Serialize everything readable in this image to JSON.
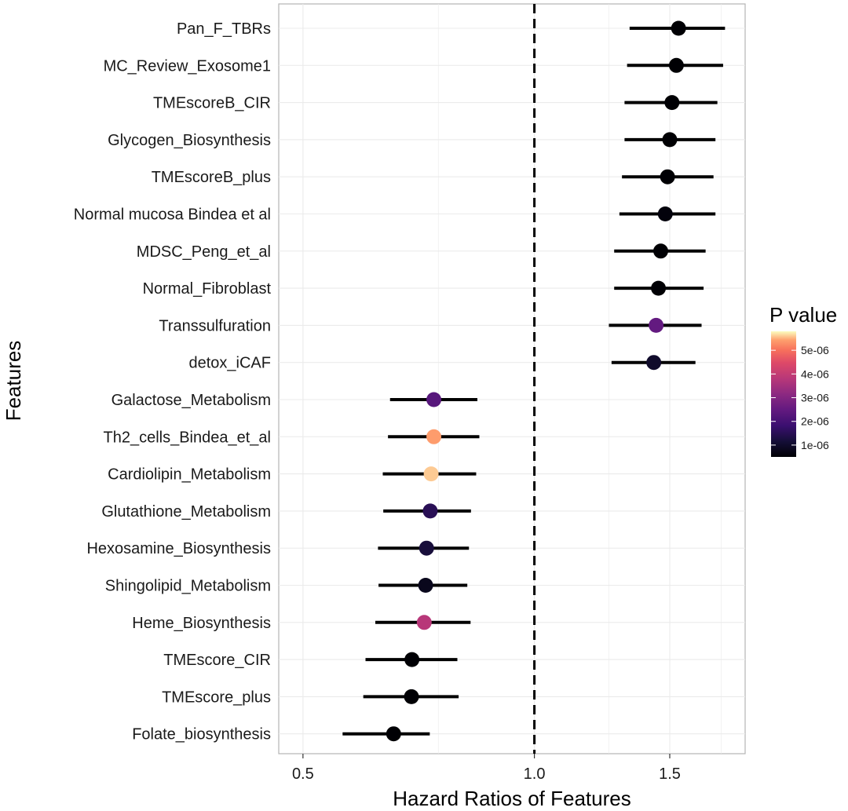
{
  "chart_data": {
    "type": "scatter",
    "subtype": "forest-plot",
    "xlabel": "Hazard Ratios of Features",
    "ylabel": "Features",
    "xscale": "log",
    "xlim": [
      0.465,
      1.88
    ],
    "xticks": [
      0.5,
      1.0,
      1.5
    ],
    "xtick_labels": [
      "0.5",
      "1.0",
      "1.5"
    ],
    "reference_line": 1.0,
    "grid": true,
    "legend": {
      "title": "P value",
      "placement": "right",
      "min": 5e-07,
      "max": 5.8e-06,
      "ticks": [
        1e-06,
        2e-06,
        3e-06,
        4e-06,
        5e-06
      ],
      "tick_labels": [
        "1e-06",
        "2e-06",
        "3e-06",
        "4e-06",
        "5e-06"
      ]
    },
    "features": [
      {
        "name": "Pan_F_TBRs",
        "hr": 1.54,
        "lower": 1.33,
        "upper": 1.77,
        "p": 5e-07
      },
      {
        "name": "MC_Review_Exosome1",
        "hr": 1.53,
        "lower": 1.32,
        "upper": 1.76,
        "p": 5e-07
      },
      {
        "name": "TMEscoreB_CIR",
        "hr": 1.51,
        "lower": 1.31,
        "upper": 1.73,
        "p": 5e-07
      },
      {
        "name": "Glycogen_Biosynthesis",
        "hr": 1.5,
        "lower": 1.31,
        "upper": 1.72,
        "p": 5e-07
      },
      {
        "name": "TMEscoreB_plus",
        "hr": 1.49,
        "lower": 1.3,
        "upper": 1.71,
        "p": 5e-07
      },
      {
        "name": "Normal mucosa Bindea et al",
        "hr": 1.48,
        "lower": 1.29,
        "upper": 1.72,
        "p": 6e-07
      },
      {
        "name": "MDSC_Peng_et_al",
        "hr": 1.46,
        "lower": 1.27,
        "upper": 1.67,
        "p": 5e-07
      },
      {
        "name": "Normal_Fibroblast",
        "hr": 1.45,
        "lower": 1.27,
        "upper": 1.66,
        "p": 5e-07
      },
      {
        "name": "Transsulfuration",
        "hr": 1.44,
        "lower": 1.25,
        "upper": 1.65,
        "p": 2.5e-06
      },
      {
        "name": "detox_iCAF",
        "hr": 1.43,
        "lower": 1.26,
        "upper": 1.62,
        "p": 1e-06
      },
      {
        "name": "Galactose_Metabolism",
        "hr": 0.74,
        "lower": 0.649,
        "upper": 0.843,
        "p": 2.3e-06
      },
      {
        "name": "Th2_cells_Bindea_et_al",
        "hr": 0.74,
        "lower": 0.645,
        "upper": 0.848,
        "p": 5.4e-06
      },
      {
        "name": "Cardiolipin_Metabolism",
        "hr": 0.734,
        "lower": 0.635,
        "upper": 0.84,
        "p": 5.6e-06
      },
      {
        "name": "Glutathione_Metabolism",
        "hr": 0.732,
        "lower": 0.636,
        "upper": 0.827,
        "p": 1.5e-06
      },
      {
        "name": "Hexosamine_Biosynthesis",
        "hr": 0.724,
        "lower": 0.626,
        "upper": 0.822,
        "p": 1.2e-06
      },
      {
        "name": "Shingolipid_Metabolism",
        "hr": 0.722,
        "lower": 0.627,
        "upper": 0.818,
        "p": 8e-07
      },
      {
        "name": "Heme_Biosynthesis",
        "hr": 0.719,
        "lower": 0.621,
        "upper": 0.826,
        "p": 3.8e-06
      },
      {
        "name": "TMEscore_CIR",
        "hr": 0.693,
        "lower": 0.603,
        "upper": 0.794,
        "p": 5e-07
      },
      {
        "name": "TMEscore_plus",
        "hr": 0.692,
        "lower": 0.599,
        "upper": 0.797,
        "p": 5e-07
      },
      {
        "name": "Folate_biosynthesis",
        "hr": 0.656,
        "lower": 0.563,
        "upper": 0.731,
        "p": 5e-07
      }
    ]
  }
}
